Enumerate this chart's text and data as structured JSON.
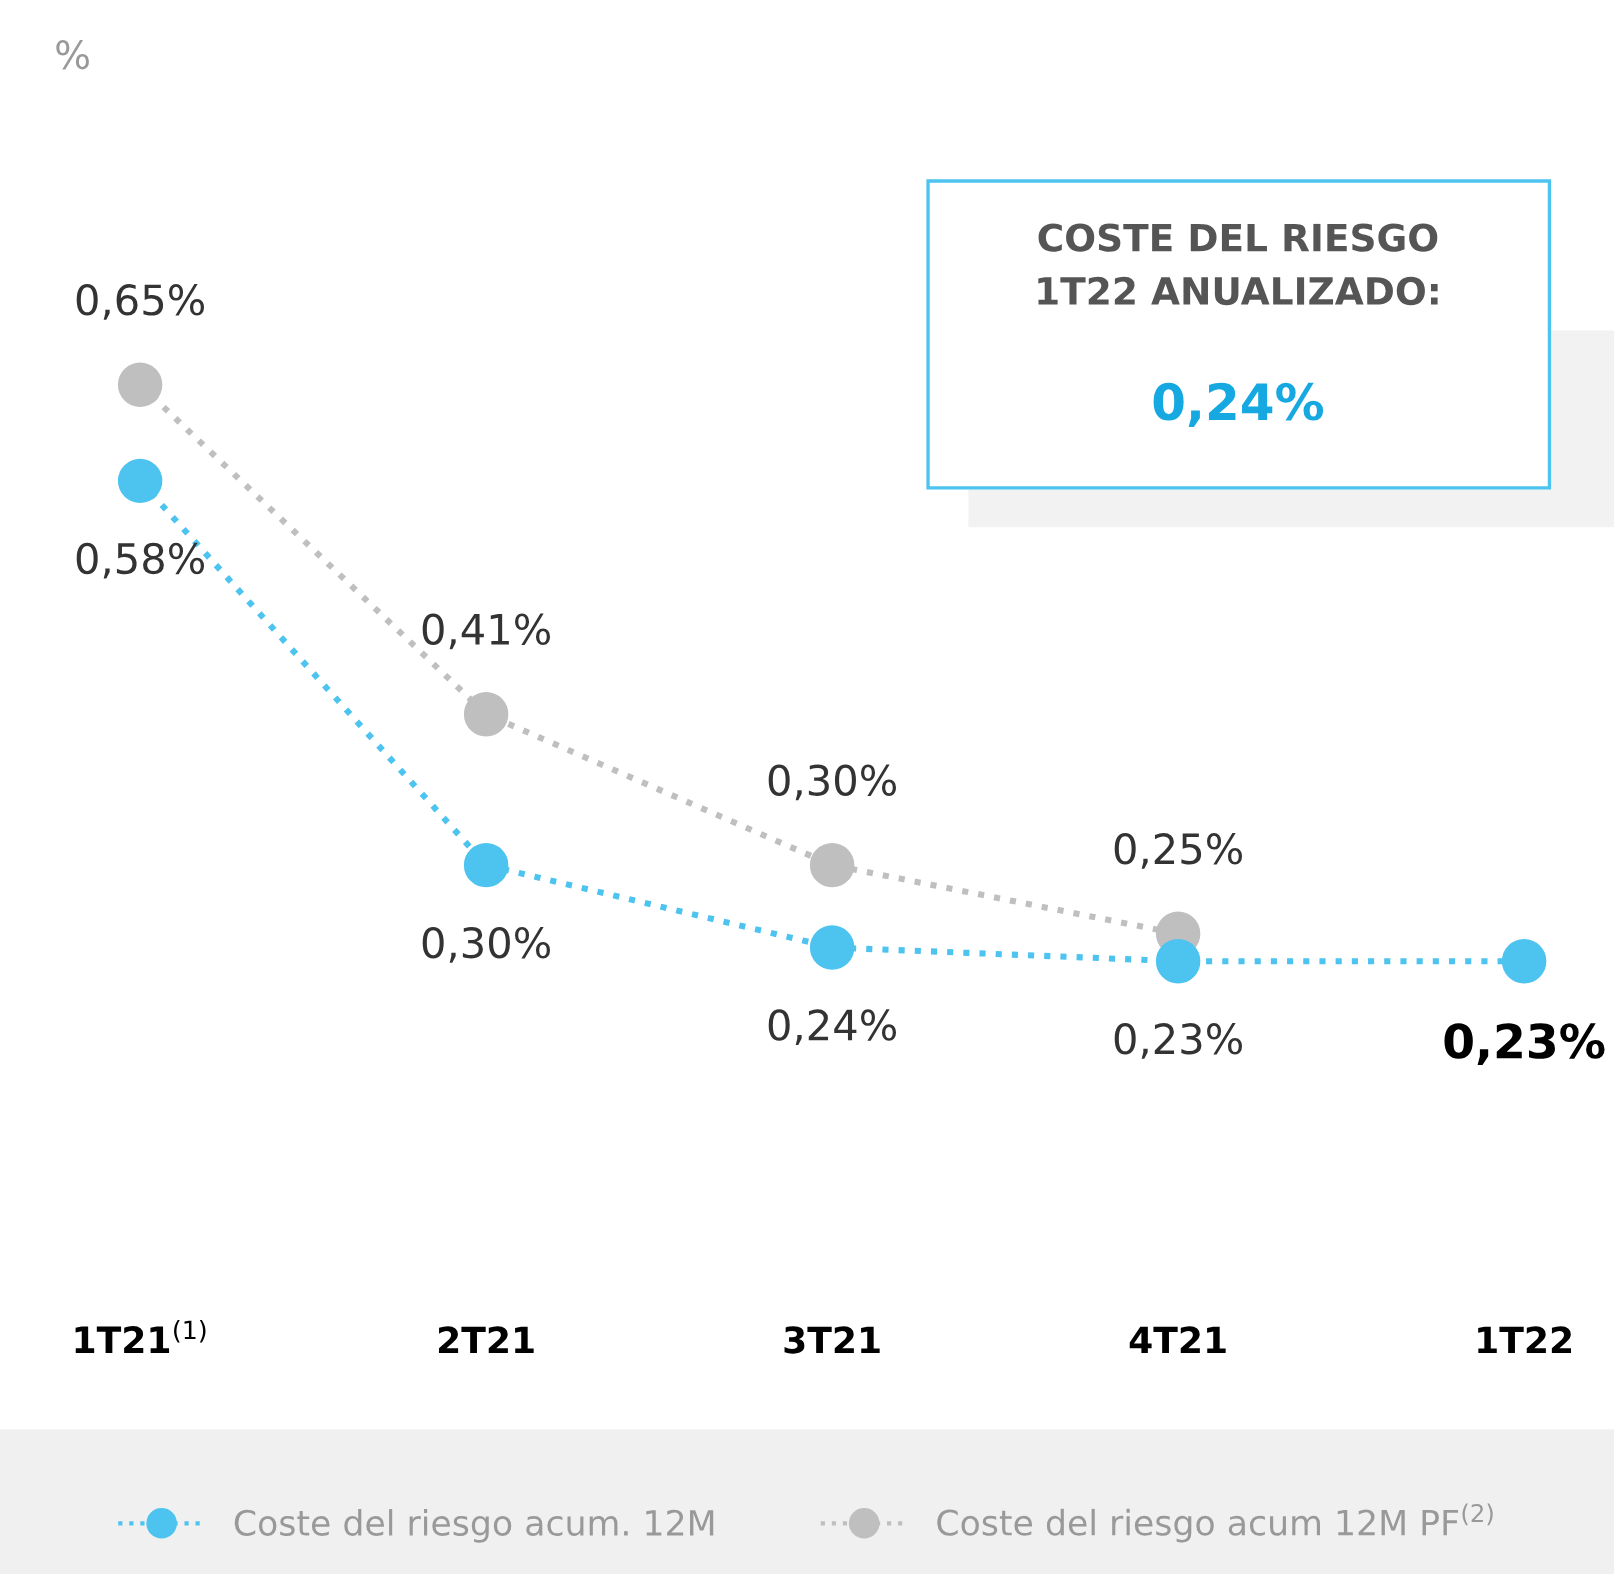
{
  "chart_data": {
    "type": "line",
    "categories": [
      "1T21$^{(1)}$",
      "2T21",
      "3T21",
      "4T21",
      "1T22"
    ],
    "series": [
      {
        "name": "Coste del riesgo acum 12M PF$^{(2)}$",
        "color": "#bfbfbf",
        "values": [
          0.65,
          0.41,
          0.3,
          0.25,
          null
        ],
        "value_labels": [
          "0,65%",
          "0,41%",
          "0,30%",
          "0,25%",
          null
        ]
      },
      {
        "name": "Coste del riesgo acum. 12M",
        "color": "#4dc3f0",
        "values": [
          0.58,
          0.3,
          0.24,
          0.23,
          0.23
        ],
        "value_labels": [
          "0,58%",
          "0,30%",
          "0,24%",
          "0,23%",
          "0,23%"
        ]
      }
    ],
    "annotations": [
      "%",
      "COSTE DEL RIESGO\n1T22 ANUALIZADO:",
      "0,24%"
    ],
    "marker": "circle",
    "line_style": "dotted",
    "legend": "bottom",
    "grid": false
  }
}
